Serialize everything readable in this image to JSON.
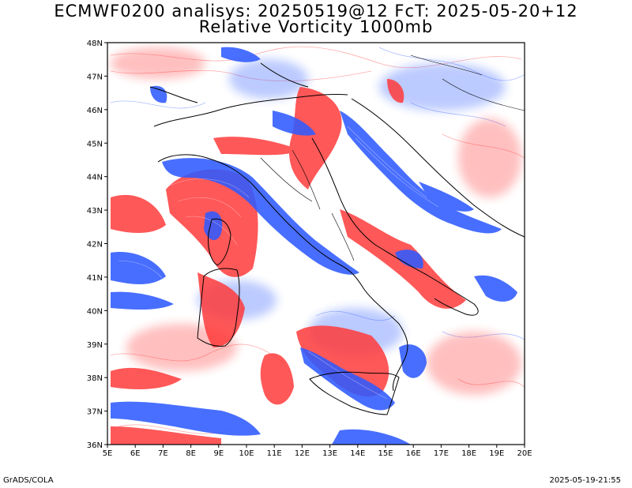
{
  "title": {
    "line1": "ECMWF0200 analisys: 20250519@12 FcT: 2025-05-20+12",
    "line2": "Relative Vorticity 1000mb"
  },
  "footer": {
    "left": "GrADS/COLA",
    "right": "2025-05-19-21:55"
  },
  "map": {
    "lon_range": [
      5,
      20
    ],
    "lat_range": [
      36,
      48
    ],
    "x_ticks": [
      "5E",
      "6E",
      "7E",
      "8E",
      "9E",
      "10E",
      "11E",
      "12E",
      "13E",
      "14E",
      "15E",
      "16E",
      "17E",
      "18E",
      "19E",
      "20E"
    ],
    "y_ticks": [
      "36N",
      "37N",
      "38N",
      "39N",
      "40N",
      "41N",
      "42N",
      "43N",
      "44N",
      "45N",
      "46N",
      "47N",
      "48N"
    ],
    "colors": {
      "positive_vorticity": "#ff3b3b",
      "negative_vorticity": "#2f5bff",
      "coastline": "#000000"
    }
  }
}
